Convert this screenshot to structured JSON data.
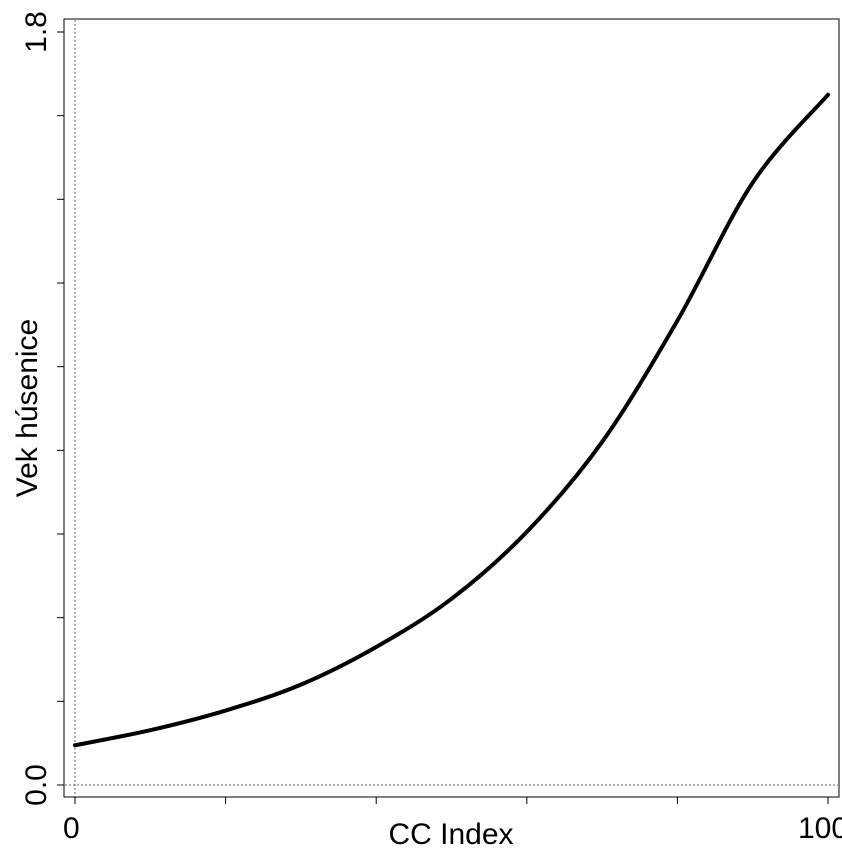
{
  "chart_data": {
    "type": "line",
    "title": "",
    "xlabel": "CC Index",
    "ylabel": "Vek húsenice",
    "xlim": [
      0,
      100
    ],
    "ylim": [
      0,
      1.8
    ],
    "x_ticks": [
      0,
      20,
      40,
      60,
      80,
      100
    ],
    "x_tick_labels": [
      "0",
      "",
      "",
      "",
      "",
      "100"
    ],
    "y_ticks": [
      0,
      0.2,
      0.4,
      0.6,
      0.8,
      1.0,
      1.2,
      1.4,
      1.6,
      1.8
    ],
    "y_tick_labels": [
      "0.0",
      "",
      "",
      "",
      "",
      "",
      "",
      "",
      "",
      "1.8"
    ],
    "reference_lines": {
      "x": 0,
      "y": 0
    },
    "grid": false,
    "series": [
      {
        "color": "#000000",
        "x": [
          0,
          10,
          20,
          30,
          40,
          50,
          60,
          70,
          80,
          90,
          100
        ],
        "y": [
          0.095,
          0.131,
          0.178,
          0.24,
          0.33,
          0.445,
          0.605,
          0.82,
          1.11,
          1.44,
          1.65
        ]
      }
    ]
  }
}
